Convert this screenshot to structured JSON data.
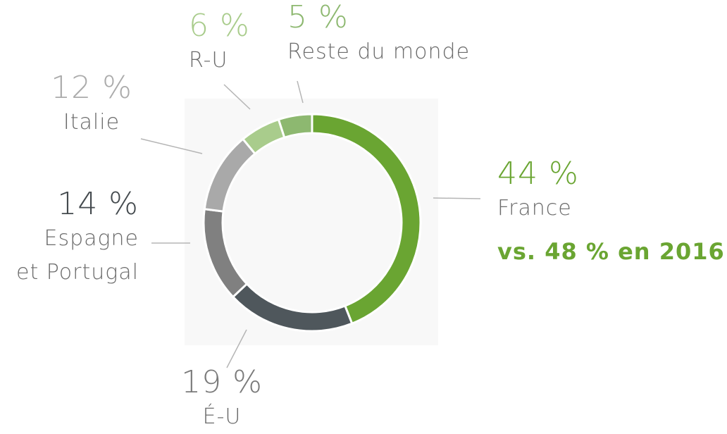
{
  "chart_data": {
    "type": "pie",
    "donut": true,
    "categories": [
      "France",
      "É-U",
      "Espagne\net Portugal",
      "Italie",
      "R-U",
      "Reste du monde"
    ],
    "values": [
      44,
      19,
      14,
      12,
      6,
      5
    ],
    "value_labels": [
      "44 %",
      "19 %",
      "14 %",
      "12 %",
      "6 %",
      "5 %"
    ],
    "colors": [
      "#6aa532",
      "#4f575c",
      "#808080",
      "#a9a9a9",
      "#a9cc8c",
      "#8db870"
    ],
    "annotation": "vs. 48 % en 2016",
    "annotation_color": "#6aa532"
  }
}
